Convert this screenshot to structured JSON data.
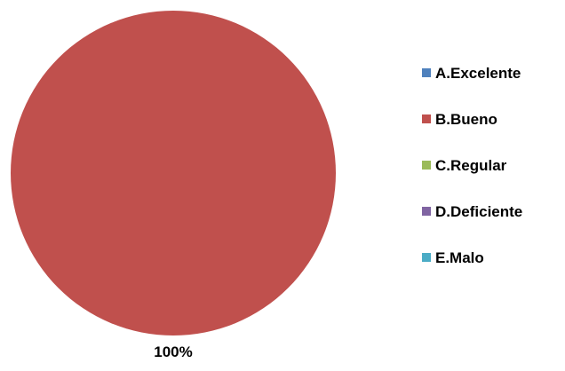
{
  "chart_data": {
    "type": "pie",
    "categories": [
      "A.Excelente",
      "B.Bueno",
      "C.Regular",
      "D.Deficiente",
      "E.Malo"
    ],
    "values": [
      0,
      100,
      0,
      0,
      0
    ],
    "colors": [
      "#4f81bd",
      "#c0504d",
      "#9bbb59",
      "#8064a2",
      "#4bacc6"
    ],
    "data_labels": [
      "",
      "100%",
      "",
      "",
      ""
    ],
    "legend_position": "right",
    "title": ""
  }
}
